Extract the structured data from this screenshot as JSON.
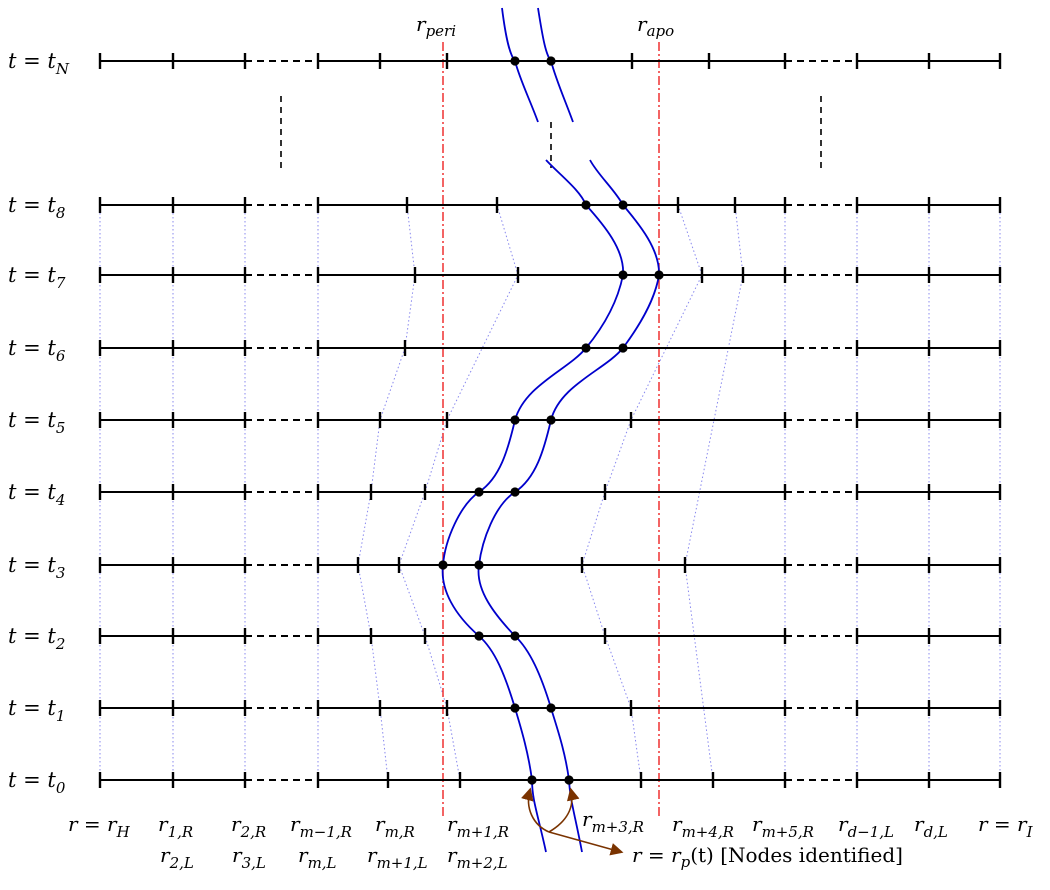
{
  "rows": [
    {
      "label": "t = t",
      "sub": "N"
    },
    {
      "label": "t = t",
      "sub": "8"
    },
    {
      "label": "t = t",
      "sub": "7"
    },
    {
      "label": "t = t",
      "sub": "6"
    },
    {
      "label": "t = t",
      "sub": "5"
    },
    {
      "label": "t = t",
      "sub": "4"
    },
    {
      "label": "t = t",
      "sub": "3"
    },
    {
      "label": "t = t",
      "sub": "2"
    },
    {
      "label": "t = t",
      "sub": "1"
    },
    {
      "label": "t = t",
      "sub": "0"
    }
  ],
  "top_labels": {
    "peri": {
      "base": "r",
      "sub": "peri"
    },
    "apo": {
      "base": "r",
      "sub": "apo"
    }
  },
  "bottom_labels_row1": [
    {
      "base": "r = r",
      "sub": "H"
    },
    {
      "base": "r",
      "sub": "1,R"
    },
    {
      "base": "r",
      "sub": "2,R"
    },
    {
      "base": "r",
      "sub": "m−1,R"
    },
    {
      "base": "r",
      "sub": "m,R"
    },
    {
      "base": "r",
      "sub": "m+1,R"
    },
    {
      "base": "r",
      "sub": "m+3,R"
    },
    {
      "base": "r",
      "sub": "m+4,R"
    },
    {
      "base": "r",
      "sub": "m+5,R"
    },
    {
      "base": "r",
      "sub": "d−1,L"
    },
    {
      "base": "r",
      "sub": "d,L"
    },
    {
      "base": "r = r",
      "sub": "I"
    }
  ],
  "bottom_labels_row2": [
    {
      "base": "r",
      "sub": "2,L"
    },
    {
      "base": "r",
      "sub": "3,L"
    },
    {
      "base": "r",
      "sub": "m,L"
    },
    {
      "base": "r",
      "sub": "m+1,L"
    },
    {
      "base": "r",
      "sub": "m+2,L"
    }
  ],
  "caption": {
    "prefix": "r = r",
    "sub": "p",
    "suffix": "(t) [Nodes identified]"
  },
  "colors": {
    "grid": "#000000",
    "orbit": "#0000cc",
    "radius_marker": "#ee2222",
    "guide": "#8888ee",
    "arrow": "#7a3300"
  }
}
